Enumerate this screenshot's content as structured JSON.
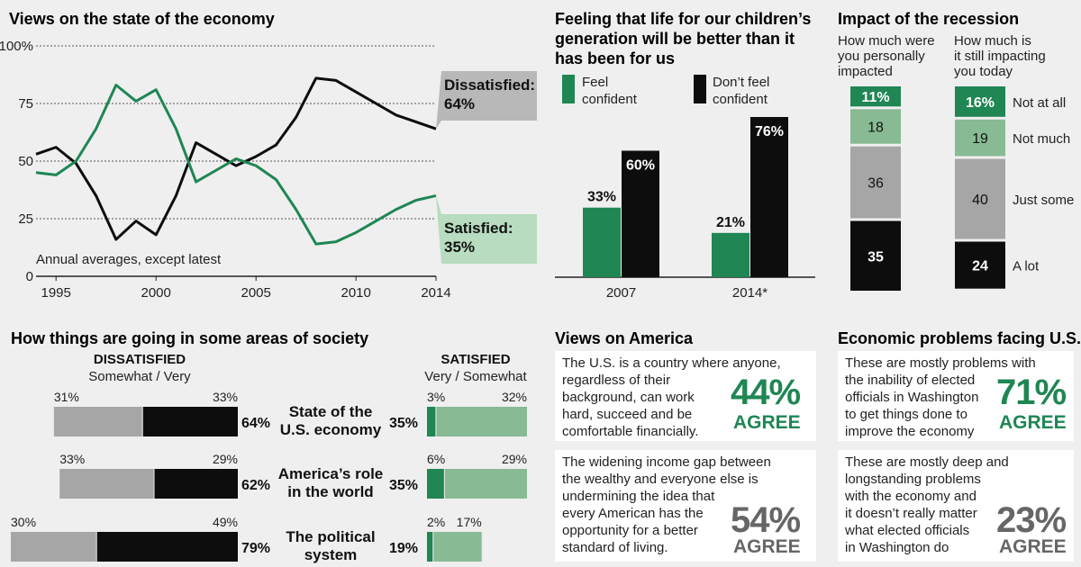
{
  "colors": {
    "green": "#1f8654",
    "lightgreen": "#88bb94",
    "black": "#0d0d0d",
    "grey": "#a6a6a6",
    "agreegrey": "#666666"
  },
  "chart_data": [
    {
      "type": "line",
      "title": "Views on the state of the economy",
      "note": "Annual averages, except latest",
      "y_ticks": [
        "100%",
        "75",
        "50",
        "25",
        "0"
      ],
      "x_ticks": [
        "1995",
        "2000",
        "2005",
        "2010",
        "2014"
      ],
      "ylim": [
        0,
        100
      ],
      "xlim": [
        1994,
        2014
      ],
      "series": [
        {
          "name": "Dissatisfied",
          "label": "Dissatisfied:",
          "value_label": "64%",
          "x": [
            1994,
            1995,
            1996,
            1997,
            1998,
            1999,
            2000,
            2001,
            2002,
            2003,
            2004,
            2005,
            2006,
            2007,
            2008,
            2009,
            2010,
            2011,
            2012,
            2013,
            2014
          ],
          "values": [
            53,
            56,
            49,
            35,
            16,
            24,
            18,
            35,
            58,
            53,
            48,
            52,
            57,
            69,
            86,
            85,
            80,
            75,
            70,
            67,
            64
          ]
        },
        {
          "name": "Satisfied",
          "label": "Satisfied:",
          "value_label": "35%",
          "x": [
            1994,
            1995,
            1996,
            1997,
            1998,
            1999,
            2000,
            2001,
            2002,
            2003,
            2004,
            2005,
            2006,
            2007,
            2008,
            2009,
            2010,
            2011,
            2012,
            2013,
            2014
          ],
          "values": [
            45,
            44,
            50,
            64,
            83,
            76,
            81,
            64,
            41,
            46,
            51,
            48,
            42,
            29,
            14,
            15,
            19,
            24,
            29,
            33,
            35
          ]
        }
      ]
    },
    {
      "type": "bar",
      "title_lines": [
        "Feeling that life for our children’s",
        "generation will be better than it",
        "has been for us"
      ],
      "legend": [
        {
          "lines": [
            "Feel",
            "confident"
          ]
        },
        {
          "lines": [
            "Don’t feel",
            "confident"
          ]
        }
      ],
      "categories": [
        "2007",
        "2014*"
      ],
      "series": [
        {
          "name": "Feel confident",
          "values": [
            33,
            21
          ],
          "labels": [
            "33%",
            "21%"
          ]
        },
        {
          "name": "Don’t feel confident",
          "values": [
            60,
            76
          ],
          "labels": [
            "60%",
            "76%"
          ]
        }
      ]
    },
    {
      "type": "bar",
      "subtype": "stacked",
      "title": "Impact of the recession",
      "columns": [
        {
          "header": [
            "How much were",
            "you personally",
            "impacted"
          ],
          "values": [
            11,
            18,
            36,
            35
          ],
          "labels": [
            "11%",
            "18",
            "36",
            "35"
          ]
        },
        {
          "header": [
            "How much is",
            "it still impacting",
            "you today"
          ],
          "values": [
            16,
            19,
            40,
            24
          ],
          "labels": [
            "16%",
            "19",
            "40",
            "24"
          ]
        }
      ],
      "categories": [
        "Not at all",
        "Not much",
        "Just some",
        "A lot"
      ]
    },
    {
      "type": "bar",
      "subtype": "diverging",
      "title": "How things are going in some areas of society",
      "left_header": "DISSATISFIED",
      "left_sub": "Somewhat / Very",
      "right_header": "SATISFIED",
      "right_sub": "Very / Somewhat",
      "rows": [
        {
          "label": [
            "State of the",
            "U.S. economy"
          ],
          "dis_somewhat": 31,
          "dis_very": 33,
          "dis_total": "64%",
          "sat_very": 3,
          "sat_somewhat": 32,
          "sat_total": "35%",
          "dis_somewhat_label": "31%",
          "dis_very_label": "33%",
          "sat_very_label": "3%",
          "sat_somewhat_label": "32%"
        },
        {
          "label": [
            "America’s role",
            "in the world"
          ],
          "dis_somewhat": 33,
          "dis_very": 29,
          "dis_total": "62%",
          "sat_very": 6,
          "sat_somewhat": 29,
          "sat_total": "35%",
          "dis_somewhat_label": "33%",
          "dis_very_label": "29%",
          "sat_very_label": "6%",
          "sat_somewhat_label": "29%"
        },
        {
          "label": [
            "The political",
            "system"
          ],
          "dis_somewhat": 30,
          "dis_very": 49,
          "dis_total": "79%",
          "sat_very": 2,
          "sat_somewhat": 17,
          "sat_total": "19%",
          "dis_somewhat_label": "30%",
          "dis_very_label": "49%",
          "sat_very_label": "2%",
          "sat_somewhat_label": "17%"
        }
      ]
    }
  ],
  "views_on_america": {
    "title": "Views on America",
    "cards": [
      {
        "text": [
          "The U.S. is a country where anyone,",
          "regardless of their",
          "background, can work",
          "hard, succeed and be",
          "comfortable financially."
        ],
        "pct": "44%",
        "agree": "AGREE",
        "color": "green"
      },
      {
        "text": [
          "The widening income gap between",
          "the wealthy and everyone else is",
          "undermining the idea that",
          "every American has the",
          "opportunity for a better",
          "standard of living."
        ],
        "pct": "54%",
        "agree": "AGREE",
        "color": "grey"
      }
    ]
  },
  "economic_problems": {
    "title": "Economic problems facing U.S.*",
    "cards": [
      {
        "text": [
          "These are mostly problems with",
          "the inability of elected",
          "officials in Washington",
          "to get things done to",
          "improve the economy"
        ],
        "pct": "71%",
        "agree": "AGREE",
        "color": "green"
      },
      {
        "text": [
          "These are mostly deep and",
          "longstanding problems",
          "with the economy and",
          "it doesn’t really matter",
          "what elected officials",
          "in Washington do"
        ],
        "pct": "23%",
        "agree": "AGREE",
        "color": "grey"
      }
    ]
  }
}
